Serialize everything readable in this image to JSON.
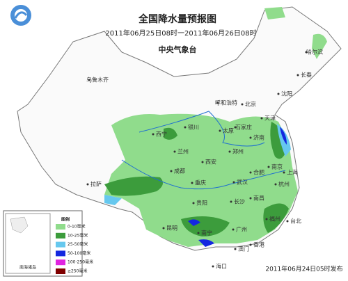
{
  "header": {
    "title": "全国降水量预报图",
    "period": "2011年06月25日08时一2011年06月26日08时",
    "issuer": "中央气象台"
  },
  "cities": [
    "乌鲁木齐",
    "哈尔滨",
    "长春",
    "沈阳",
    "呼和浩特",
    "北京",
    "天津",
    "石家庄",
    "太原",
    "银川",
    "西宁",
    "兰州",
    "济南",
    "郑州",
    "西安",
    "合肥",
    "南京",
    "上海",
    "武汉",
    "成都",
    "重庆",
    "杭州",
    "拉萨",
    "长沙",
    "南昌",
    "贵阳",
    "福州",
    "昆明",
    "南宁",
    "广州",
    "香港",
    "澳门",
    "台北",
    "海口"
  ],
  "legend": {
    "title": "图例",
    "items": [
      {
        "label": "0-10毫米",
        "color": "#90dc8c"
      },
      {
        "label": "10-25毫米",
        "color": "#3c9c3c"
      },
      {
        "label": "25-50毫米",
        "color": "#66c8ee"
      },
      {
        "label": "50-100毫米",
        "color": "#1428e0"
      },
      {
        "label": "100-250毫米",
        "color": "#e024e0"
      },
      {
        "label": "≥250毫米",
        "color": "#800000"
      }
    ],
    "inset": "南海诸岛"
  },
  "footer": {
    "published": "2011年06月24日05时发布"
  }
}
